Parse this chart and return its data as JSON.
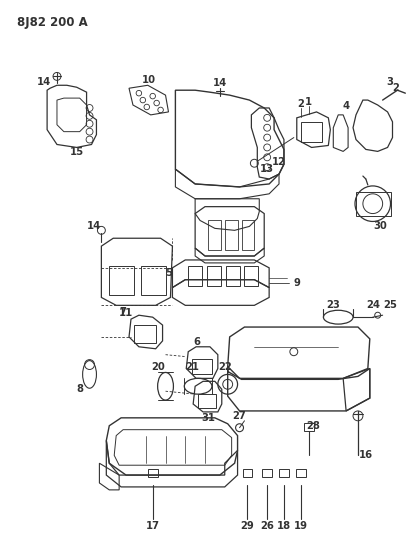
{
  "title": "8J82 200 A",
  "bg_color": "#ffffff",
  "line_color": "#333333",
  "label_fontsize": 7.2,
  "title_fontsize": 8.5,
  "fig_width": 4.1,
  "fig_height": 5.33,
  "dpi": 100
}
